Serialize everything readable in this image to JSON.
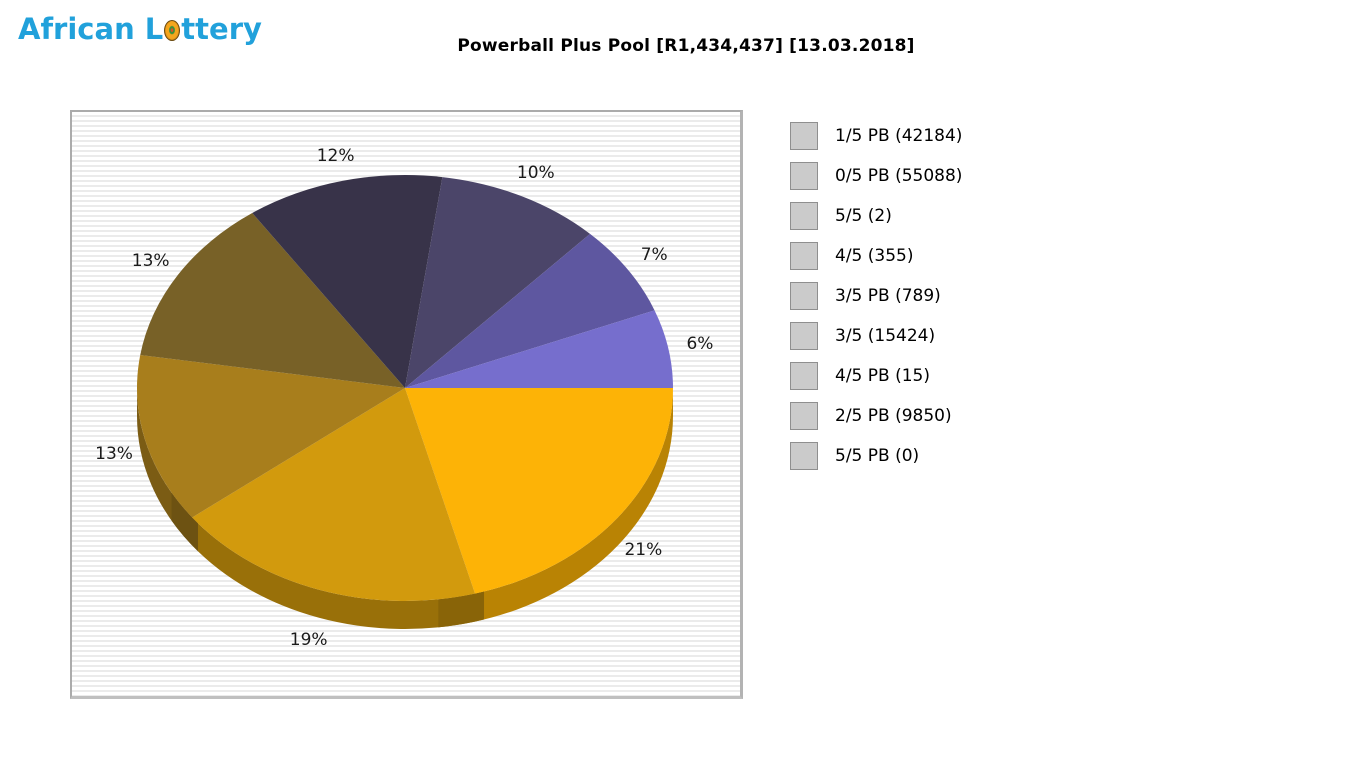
{
  "logo": {
    "text_before_ball": "African L",
    "text_after_ball": "ttery",
    "full_name": "African Lottery",
    "color": "#21a1db"
  },
  "header": {
    "title": "Powerball Plus Pool [R1,434,437] [13.03.2018]"
  },
  "chart_data": {
    "type": "pie",
    "style": "3d-pie",
    "title": "Powerball Plus Pool [R1,434,437] [13.03.2018]",
    "pool_amount": "R1,434,437",
    "draw_date": "13.03.2018",
    "start_angle_deg": 0,
    "direction": "clockwise",
    "legend_position": "right",
    "slices": [
      {
        "label": "1/5 PB",
        "winners": 42184,
        "percent": 21,
        "color": "#FDB306",
        "legend_label": "1/5 PB (42184)"
      },
      {
        "label": "0/5 PB",
        "winners": 55088,
        "percent": 19,
        "color": "#D29A0D",
        "legend_label": "0/5 PB (55088)"
      },
      {
        "label": "5/5",
        "winners": 2,
        "percent": 13,
        "color": "#A87E1C",
        "legend_label": "5/5 (2)"
      },
      {
        "label": "4/5",
        "winners": 355,
        "percent": 13,
        "color": "#786127",
        "legend_label": "4/5 (355)"
      },
      {
        "label": "3/5 PB",
        "winners": 789,
        "percent": 12,
        "color": "#383349",
        "legend_label": "3/5 PB (789)"
      },
      {
        "label": "3/5",
        "winners": 15424,
        "percent": 10,
        "color": "#4B4569",
        "legend_label": "3/5 (15424)"
      },
      {
        "label": "4/5 PB",
        "winners": 15,
        "percent": 7,
        "color": "#5E57A0",
        "legend_label": "4/5 PB (15)"
      },
      {
        "label": "2/5 PB",
        "winners": 9850,
        "percent": 6,
        "color": "#766ECD",
        "legend_label": "2/5 PB (9850)"
      },
      {
        "label": "5/5 PB",
        "winners": 0,
        "percent": 0,
        "color": "#9D95F5",
        "legend_label": "5/5 PB (0)"
      }
    ]
  }
}
